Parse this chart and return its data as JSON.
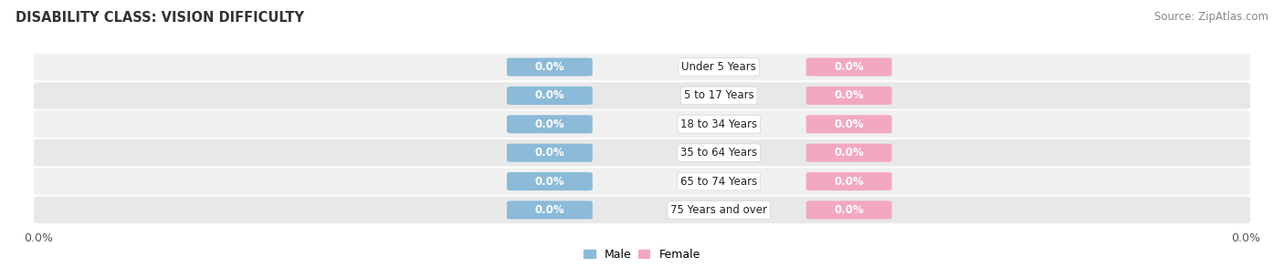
{
  "title": "DISABILITY CLASS: VISION DIFFICULTY",
  "source": "Source: ZipAtlas.com",
  "categories": [
    "Under 5 Years",
    "5 to 17 Years",
    "18 to 34 Years",
    "35 to 64 Years",
    "65 to 74 Years",
    "75 Years and over"
  ],
  "male_values": [
    0.0,
    0.0,
    0.0,
    0.0,
    0.0,
    0.0
  ],
  "female_values": [
    0.0,
    0.0,
    0.0,
    0.0,
    0.0,
    0.0
  ],
  "male_color": "#8bbbd9",
  "female_color": "#f2a8bf",
  "row_bg_colors": [
    "#f0f0f0",
    "#e8e8e8"
  ],
  "title_fontsize": 10.5,
  "source_fontsize": 8.5,
  "legend_fontsize": 9,
  "tick_label": "0.0%",
  "figsize": [
    14.06,
    3.04
  ],
  "dpi": 100
}
